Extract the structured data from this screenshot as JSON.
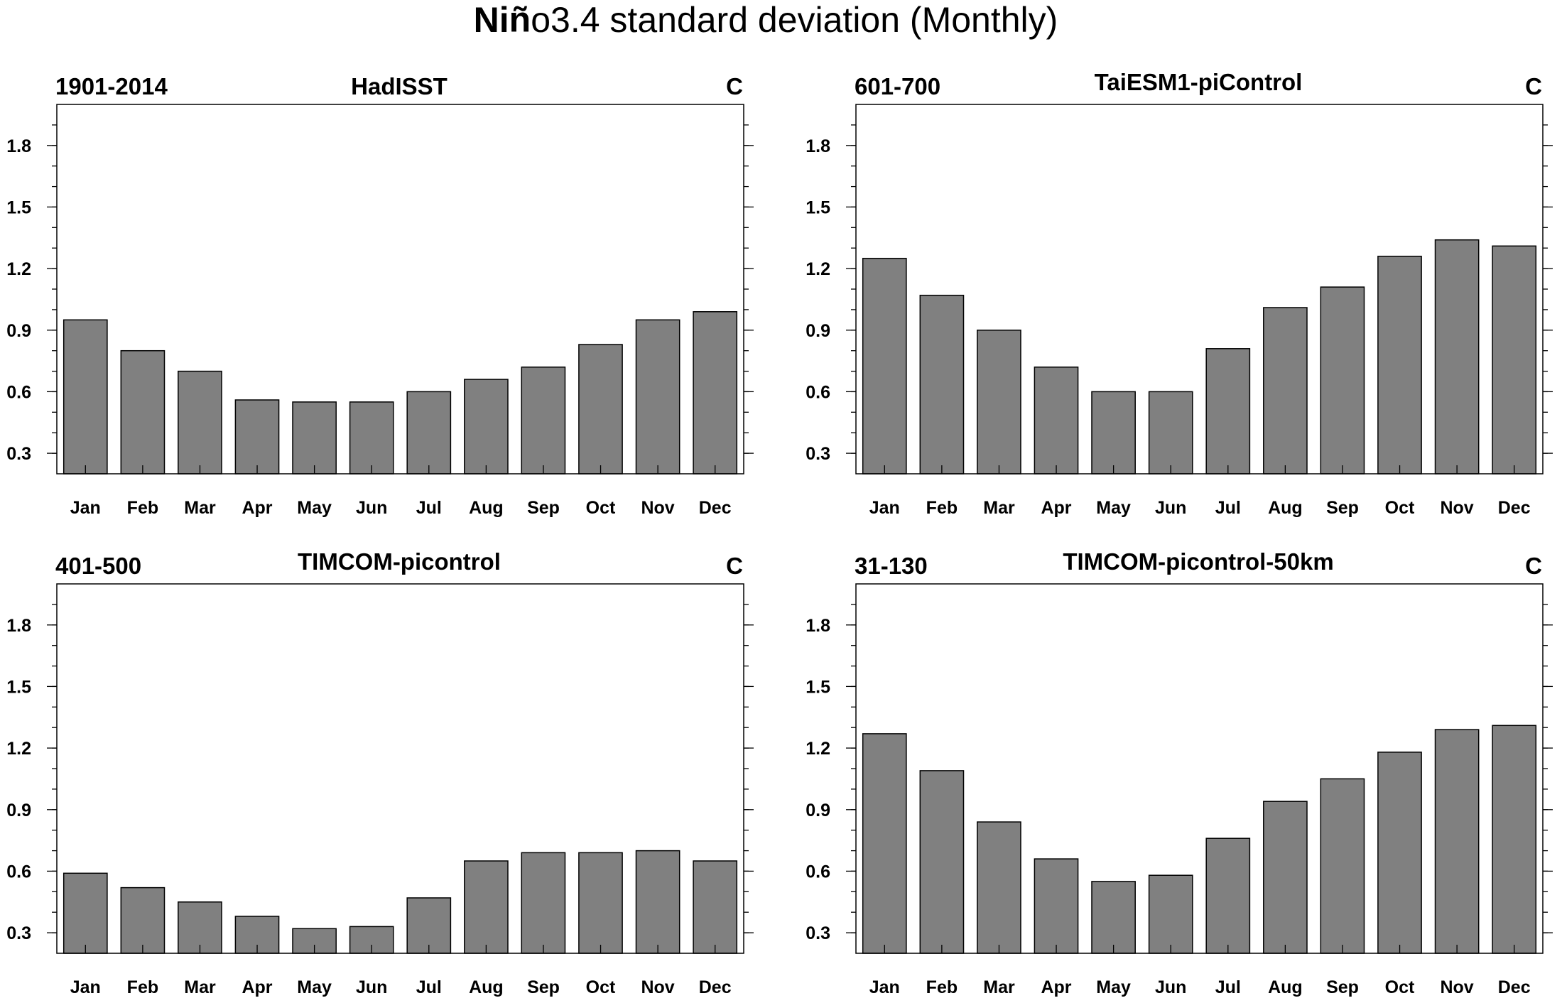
{
  "title_prefix": "Niñ",
  "title_rest": "o3.4 standard deviation (Monthly)",
  "chart_data": [
    {
      "type": "bar",
      "left_label": "1901-2014",
      "title": "HadISST",
      "right_label": "C",
      "categories": [
        "Jan",
        "Feb",
        "Mar",
        "Apr",
        "May",
        "Jun",
        "Jul",
        "Aug",
        "Sep",
        "Oct",
        "Nov",
        "Dec"
      ],
      "values": [
        0.95,
        0.8,
        0.7,
        0.56,
        0.55,
        0.55,
        0.6,
        0.66,
        0.72,
        0.83,
        0.95,
        0.99
      ],
      "ylim": [
        0.2,
        2.0
      ],
      "yticks": [
        0.3,
        0.6,
        0.9,
        1.2,
        1.5,
        1.8
      ],
      "ytick_labels": [
        "0.3",
        "0.6",
        "0.9",
        "1.2",
        "1.5",
        "1.8"
      ],
      "color": "#808080"
    },
    {
      "type": "bar",
      "left_label": "601-700",
      "title": "TaiESM1-piControl",
      "right_label": "C",
      "categories": [
        "Jan",
        "Feb",
        "Mar",
        "Apr",
        "May",
        "Jun",
        "Jul",
        "Aug",
        "Sep",
        "Oct",
        "Nov",
        "Dec"
      ],
      "values": [
        1.25,
        1.07,
        0.9,
        0.72,
        0.6,
        0.6,
        0.81,
        1.01,
        1.11,
        1.26,
        1.34,
        1.31
      ],
      "ylim": [
        0.2,
        2.0
      ],
      "yticks": [
        0.3,
        0.6,
        0.9,
        1.2,
        1.5,
        1.8
      ],
      "ytick_labels": [
        "0.3",
        "0.6",
        "0.9",
        "1.2",
        "1.5",
        "1.8"
      ],
      "color": "#808080"
    },
    {
      "type": "bar",
      "left_label": "401-500",
      "title": "TIMCOM-picontrol",
      "right_label": "C",
      "categories": [
        "Jan",
        "Feb",
        "Mar",
        "Apr",
        "May",
        "Jun",
        "Jul",
        "Aug",
        "Sep",
        "Oct",
        "Nov",
        "Dec"
      ],
      "values": [
        0.59,
        0.52,
        0.45,
        0.38,
        0.32,
        0.33,
        0.47,
        0.65,
        0.69,
        0.69,
        0.7,
        0.65
      ],
      "ylim": [
        0.2,
        2.0
      ],
      "yticks": [
        0.3,
        0.6,
        0.9,
        1.2,
        1.5,
        1.8
      ],
      "ytick_labels": [
        "0.3",
        "0.6",
        "0.9",
        "1.2",
        "1.5",
        "1.8"
      ],
      "color": "#808080"
    },
    {
      "type": "bar",
      "left_label": "31-130",
      "title": "TIMCOM-picontrol-50km",
      "right_label": "C",
      "categories": [
        "Jan",
        "Feb",
        "Mar",
        "Apr",
        "May",
        "Jun",
        "Jul",
        "Aug",
        "Sep",
        "Oct",
        "Nov",
        "Dec"
      ],
      "values": [
        1.27,
        1.09,
        0.84,
        0.66,
        0.55,
        0.58,
        0.76,
        0.94,
        1.05,
        1.18,
        1.29,
        1.31
      ],
      "ylim": [
        0.2,
        2.0
      ],
      "yticks": [
        0.3,
        0.6,
        0.9,
        1.2,
        1.5,
        1.8
      ],
      "ytick_labels": [
        "0.3",
        "0.6",
        "0.9",
        "1.2",
        "1.5",
        "1.8"
      ],
      "color": "#808080"
    }
  ]
}
